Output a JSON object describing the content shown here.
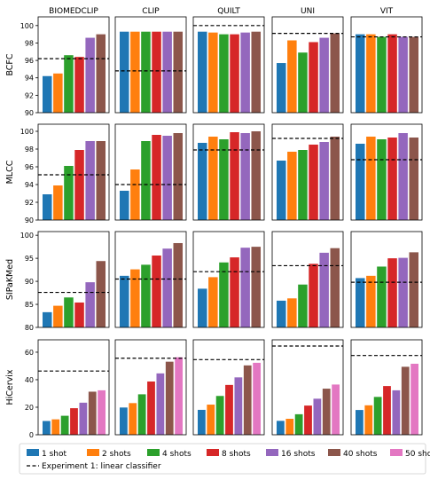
{
  "chart_data": {
    "type": "bar",
    "columns": [
      "BIOMEDCLIP",
      "CLIP",
      "QUILT",
      "UNI",
      "VIT"
    ],
    "legend": {
      "position": "bottom",
      "entries": [
        "1 shot",
        "2 shots",
        "4 shots",
        "8 shots",
        "16 shots",
        "40 shots",
        "50 shots"
      ],
      "baseline_label": "Experiment 1: linear classifier"
    },
    "series_colors": {
      "1 shot": "#1f77b4",
      "2 shots": "#ff7f0e",
      "4 shots": "#2ca02c",
      "8 shots": "#d62728",
      "16 shots": "#9467bd",
      "40 shots": "#8c564b",
      "50 shots": "#e377c2"
    },
    "rows": [
      {
        "label": "BCFC",
        "ylim": [
          90,
          101
        ],
        "yticks": [
          90,
          92,
          94,
          96,
          98,
          100
        ],
        "panels": [
          {
            "model": "BIOMEDCLIP",
            "values": {
              "1 shot": 94.2,
              "2 shots": 94.5,
              "4 shots": 96.6,
              "8 shots": 96.4,
              "16 shots": 98.6,
              "40 shots": 99.0
            },
            "baseline": 96.2
          },
          {
            "model": "CLIP",
            "values": {
              "1 shot": 99.3,
              "2 shots": 99.3,
              "4 shots": 99.3,
              "8 shots": 99.3,
              "16 shots": 99.3,
              "40 shots": 99.3
            },
            "baseline": 94.8
          },
          {
            "model": "QUILT",
            "values": {
              "1 shot": 99.3,
              "2 shots": 99.2,
              "4 shots": 99.0,
              "8 shots": 99.0,
              "16 shots": 99.2,
              "40 shots": 99.3
            },
            "baseline": 100.0
          },
          {
            "model": "UNI",
            "values": {
              "1 shot": 95.7,
              "2 shots": 98.3,
              "4 shots": 96.9,
              "8 shots": 98.1,
              "16 shots": 98.6,
              "40 shots": 99.1
            },
            "baseline": 99.1
          },
          {
            "model": "VIT",
            "values": {
              "1 shot": 99.0,
              "2 shots": 99.0,
              "4 shots": 98.7,
              "8 shots": 99.0,
              "16 shots": 98.7,
              "40 shots": 98.7
            },
            "baseline": 98.7
          }
        ]
      },
      {
        "label": "MLCC",
        "ylim": [
          90,
          100.8
        ],
        "yticks": [
          90,
          92,
          94,
          96,
          98,
          100
        ],
        "panels": [
          {
            "model": "BIOMEDCLIP",
            "values": {
              "1 shot": 92.9,
              "2 shots": 93.9,
              "4 shots": 96.1,
              "8 shots": 97.9,
              "16 shots": 98.9,
              "40 shots": 98.9
            },
            "baseline": 95.1
          },
          {
            "model": "CLIP",
            "values": {
              "1 shot": 93.3,
              "2 shots": 95.7,
              "4 shots": 98.9,
              "8 shots": 99.6,
              "16 shots": 99.5,
              "40 shots": 99.8
            },
            "baseline": 94.0
          },
          {
            "model": "QUILT",
            "values": {
              "1 shot": 98.7,
              "2 shots": 99.4,
              "4 shots": 99.1,
              "8 shots": 99.9,
              "16 shots": 99.8,
              "40 shots": 100.0
            },
            "baseline": 97.9
          },
          {
            "model": "UNI",
            "values": {
              "1 shot": 96.7,
              "2 shots": 97.7,
              "4 shots": 97.9,
              "8 shots": 98.5,
              "16 shots": 98.8,
              "40 shots": 99.4
            },
            "baseline": 99.2
          },
          {
            "model": "VIT",
            "values": {
              "1 shot": 98.6,
              "2 shots": 99.4,
              "4 shots": 99.1,
              "8 shots": 99.3,
              "16 shots": 99.8,
              "40 shots": 99.3
            },
            "baseline": 96.8
          }
        ]
      },
      {
        "label": "SIPaKMed",
        "ylim": [
          80,
          100.8
        ],
        "yticks": [
          80,
          85,
          90,
          95,
          100
        ],
        "panels": [
          {
            "model": "BIOMEDCLIP",
            "values": {
              "1 shot": 83.3,
              "2 shots": 84.7,
              "4 shots": 86.5,
              "8 shots": 85.4,
              "16 shots": 89.8,
              "40 shots": 94.4
            },
            "baseline": 87.6
          },
          {
            "model": "CLIP",
            "values": {
              "1 shot": 91.2,
              "2 shots": 92.6,
              "4 shots": 93.6,
              "8 shots": 95.6,
              "16 shots": 97.1,
              "40 shots": 98.3
            },
            "baseline": 90.5
          },
          {
            "model": "QUILT",
            "values": {
              "1 shot": 88.4,
              "2 shots": 90.9,
              "4 shots": 94.1,
              "8 shots": 95.2,
              "16 shots": 97.3,
              "40 shots": 97.5
            },
            "baseline": 92.1
          },
          {
            "model": "UNI",
            "values": {
              "1 shot": 85.8,
              "2 shots": 86.3,
              "4 shots": 89.3,
              "8 shots": 93.8,
              "16 shots": 96.2,
              "40 shots": 97.2
            },
            "baseline": 93.4
          },
          {
            "model": "VIT",
            "values": {
              "1 shot": 90.7,
              "2 shots": 91.2,
              "4 shots": 93.2,
              "8 shots": 95.0,
              "16 shots": 95.1,
              "40 shots": 96.3
            },
            "baseline": 89.8
          }
        ]
      },
      {
        "label": "HiCervix",
        "ylim": [
          0,
          69
        ],
        "yticks": [
          0,
          20,
          40,
          60
        ],
        "panels": [
          {
            "model": "BIOMEDCLIP",
            "values": {
              "1 shot": 10.0,
              "2 shots": 11.2,
              "4 shots": 13.8,
              "8 shots": 19.3,
              "16 shots": 23.3,
              "40 shots": 31.3,
              "50 shots": 32.3
            },
            "baseline": 46.3
          },
          {
            "model": "CLIP",
            "values": {
              "1 shot": 19.8,
              "2 shots": 23.0,
              "4 shots": 29.4,
              "8 shots": 38.7,
              "16 shots": 44.6,
              "40 shots": 53.1,
              "50 shots": 56.3
            },
            "baseline": 55.6
          },
          {
            "model": "QUILT",
            "values": {
              "1 shot": 18.1,
              "2 shots": 21.9,
              "4 shots": 28.2,
              "8 shots": 36.2,
              "16 shots": 41.7,
              "40 shots": 50.4,
              "50 shots": 52.3
            },
            "baseline": 54.6
          },
          {
            "model": "UNI",
            "values": {
              "1 shot": 10.1,
              "2 shots": 11.6,
              "4 shots": 14.9,
              "8 shots": 21.2,
              "16 shots": 26.2,
              "40 shots": 33.5,
              "50 shots": 36.5
            },
            "baseline": 64.5
          },
          {
            "model": "VIT",
            "values": {
              "1 shot": 18.0,
              "2 shots": 21.4,
              "4 shots": 27.5,
              "8 shots": 35.4,
              "16 shots": 32.3,
              "40 shots": 49.4,
              "50 shots": 51.6
            },
            "baseline": 57.6
          }
        ]
      }
    ]
  }
}
